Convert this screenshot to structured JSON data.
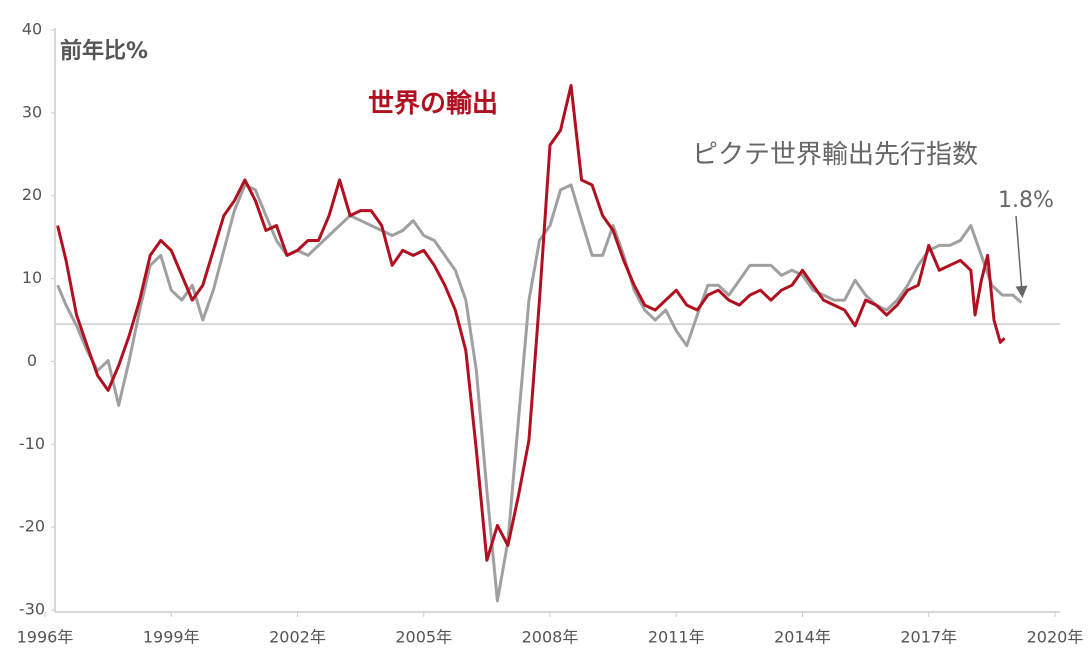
{
  "chart_data": {
    "type": "line",
    "y_unit_label": "前年比%",
    "annotations": [
      "世界の輸出",
      "ピクテ世界輸出先行指数",
      "1.8%"
    ],
    "xlim": [
      1996,
      2020
    ],
    "xticks": [
      {
        "value": 1996,
        "label": "1996年"
      },
      {
        "value": 1999,
        "label": "1999年"
      },
      {
        "value": 2002,
        "label": "2002年"
      },
      {
        "value": 2005,
        "label": "2005年"
      },
      {
        "value": 2008,
        "label": "2008年"
      },
      {
        "value": 2011,
        "label": "2011年"
      },
      {
        "value": 2014,
        "label": "2014年"
      },
      {
        "value": 2017,
        "label": "2017年"
      },
      {
        "value": 2020,
        "label": "2020年"
      }
    ],
    "ylim": [
      -30,
      40
    ],
    "yticks": [
      -30,
      -20,
      -10,
      0,
      10,
      20,
      30,
      40
    ],
    "reference_line": 4.5,
    "series": [
      {
        "name": "世界の輸出",
        "color": "#b01020",
        "x": [
          1996.3,
          1996.5,
          1996.75,
          1997.0,
          1997.25,
          1997.5,
          1997.75,
          1998.0,
          1998.25,
          1998.5,
          1998.75,
          1999.0,
          1999.25,
          1999.5,
          1999.75,
          2000.0,
          2000.25,
          2000.5,
          2000.75,
          2001.0,
          2001.25,
          2001.5,
          2001.75,
          2002.0,
          2002.25,
          2002.5,
          2002.75,
          2003.0,
          2003.25,
          2003.5,
          2003.75,
          2004.0,
          2004.25,
          2004.5,
          2004.75,
          2005.0,
          2005.25,
          2005.5,
          2005.75,
          2006.0,
          2006.25,
          2006.5,
          2006.75,
          2007.0,
          2007.25,
          2007.5,
          2007.75,
          2008.0,
          2008.25,
          2008.5,
          2008.75,
          2009.0,
          2009.25,
          2009.5,
          2009.75,
          2010.0,
          2010.25,
          2010.5,
          2010.75,
          2011.0,
          2011.25,
          2011.5,
          2011.75,
          2012.0,
          2012.25,
          2012.5,
          2012.75,
          2013.0,
          2013.25,
          2013.5,
          2013.75,
          2014.0,
          2014.25,
          2014.5,
          2014.75,
          2015.0,
          2015.25,
          2015.5,
          2015.75,
          2016.0,
          2016.25,
          2016.5,
          2016.75,
          2017.0,
          2017.25,
          2017.5,
          2017.75,
          2018.0,
          2018.1,
          2018.25,
          2018.4,
          2018.55,
          2018.7,
          2018.8
        ],
        "values": [
          16.4,
          12.2,
          5.6,
          1.9,
          -1.7,
          -3.5,
          -0.5,
          3.1,
          7.4,
          12.8,
          14.6,
          13.4,
          10.4,
          7.4,
          9.2,
          13.4,
          17.6,
          19.4,
          21.9,
          19.4,
          15.8,
          16.4,
          12.8,
          13.4,
          14.6,
          14.6,
          17.6,
          21.9,
          17.6,
          18.2,
          18.2,
          16.4,
          11.6,
          13.4,
          12.8,
          13.4,
          11.6,
          9.2,
          6.2,
          1.3,
          -10.7,
          -24.0,
          -19.8,
          -22.2,
          -16.2,
          -9.5,
          7.4,
          26.1,
          27.9,
          33.3,
          21.9,
          21.3,
          17.6,
          15.8,
          12.2,
          9.2,
          6.8,
          6.2,
          7.4,
          8.6,
          6.8,
          6.2,
          8.0,
          8.6,
          7.4,
          6.8,
          8.0,
          8.6,
          7.4,
          8.6,
          9.2,
          11.0,
          9.2,
          7.4,
          6.8,
          6.2,
          4.3,
          7.4,
          6.8,
          5.6,
          6.8,
          8.6,
          9.2,
          14.0,
          11.0,
          11.6,
          12.2,
          11.0,
          5.6,
          9.8,
          12.8,
          5.0,
          2.3,
          2.8
        ]
      },
      {
        "name": "ピクテ世界輸出先行指数",
        "color": "#a0a0a0",
        "x": [
          1996.3,
          1996.5,
          1996.75,
          1997.0,
          1997.25,
          1997.5,
          1997.75,
          1998.0,
          1998.25,
          1998.5,
          1998.75,
          1999.0,
          1999.25,
          1999.5,
          1999.75,
          2000.0,
          2000.25,
          2000.5,
          2000.75,
          2001.0,
          2001.25,
          2001.5,
          2001.75,
          2002.0,
          2002.25,
          2002.5,
          2002.75,
          2003.0,
          2003.25,
          2003.5,
          2003.75,
          2004.0,
          2004.25,
          2004.5,
          2004.75,
          2005.0,
          2005.25,
          2005.5,
          2005.75,
          2006.0,
          2006.25,
          2006.5,
          2006.75,
          2007.0,
          2007.25,
          2007.5,
          2007.75,
          2008.0,
          2008.25,
          2008.5,
          2008.75,
          2009.0,
          2009.25,
          2009.5,
          2009.75,
          2010.0,
          2010.25,
          2010.5,
          2010.75,
          2011.0,
          2011.25,
          2011.5,
          2011.75,
          2012.0,
          2012.25,
          2012.5,
          2012.75,
          2013.0,
          2013.25,
          2013.5,
          2013.75,
          2014.0,
          2014.25,
          2014.5,
          2014.75,
          2015.0,
          2015.25,
          2015.5,
          2015.75,
          2016.0,
          2016.25,
          2016.5,
          2016.75,
          2017.0,
          2017.25,
          2017.5,
          2017.75,
          2018.0,
          2018.25,
          2018.5,
          2018.75,
          2019.0,
          2019.2
        ],
        "values": [
          9.2,
          6.8,
          4.3,
          1.3,
          -1.1,
          0.1,
          -5.3,
          0.1,
          6.2,
          11.6,
          12.8,
          8.6,
          7.4,
          9.2,
          5.0,
          8.6,
          13.4,
          18.2,
          21.3,
          20.7,
          17.6,
          14.6,
          12.8,
          13.4,
          12.8,
          14.0,
          15.2,
          16.4,
          17.6,
          17.0,
          16.4,
          15.8,
          15.2,
          15.8,
          17.0,
          15.2,
          14.6,
          12.8,
          11.0,
          7.4,
          -1.1,
          -15.6,
          -28.9,
          -21.7,
          -7.1,
          7.4,
          14.6,
          16.4,
          20.7,
          21.3,
          17.0,
          12.8,
          12.8,
          16.4,
          12.8,
          8.6,
          6.2,
          5.0,
          6.2,
          3.7,
          1.9,
          5.6,
          9.2,
          9.2,
          8.0,
          9.8,
          11.6,
          11.6,
          11.6,
          10.4,
          11.0,
          10.4,
          8.6,
          8.0,
          7.4,
          7.4,
          9.8,
          8.0,
          6.8,
          6.2,
          7.4,
          9.2,
          11.6,
          13.4,
          14.0,
          14.0,
          14.6,
          16.4,
          12.8,
          9.2,
          8.0,
          8.0,
          7.1
        ]
      }
    ]
  }
}
